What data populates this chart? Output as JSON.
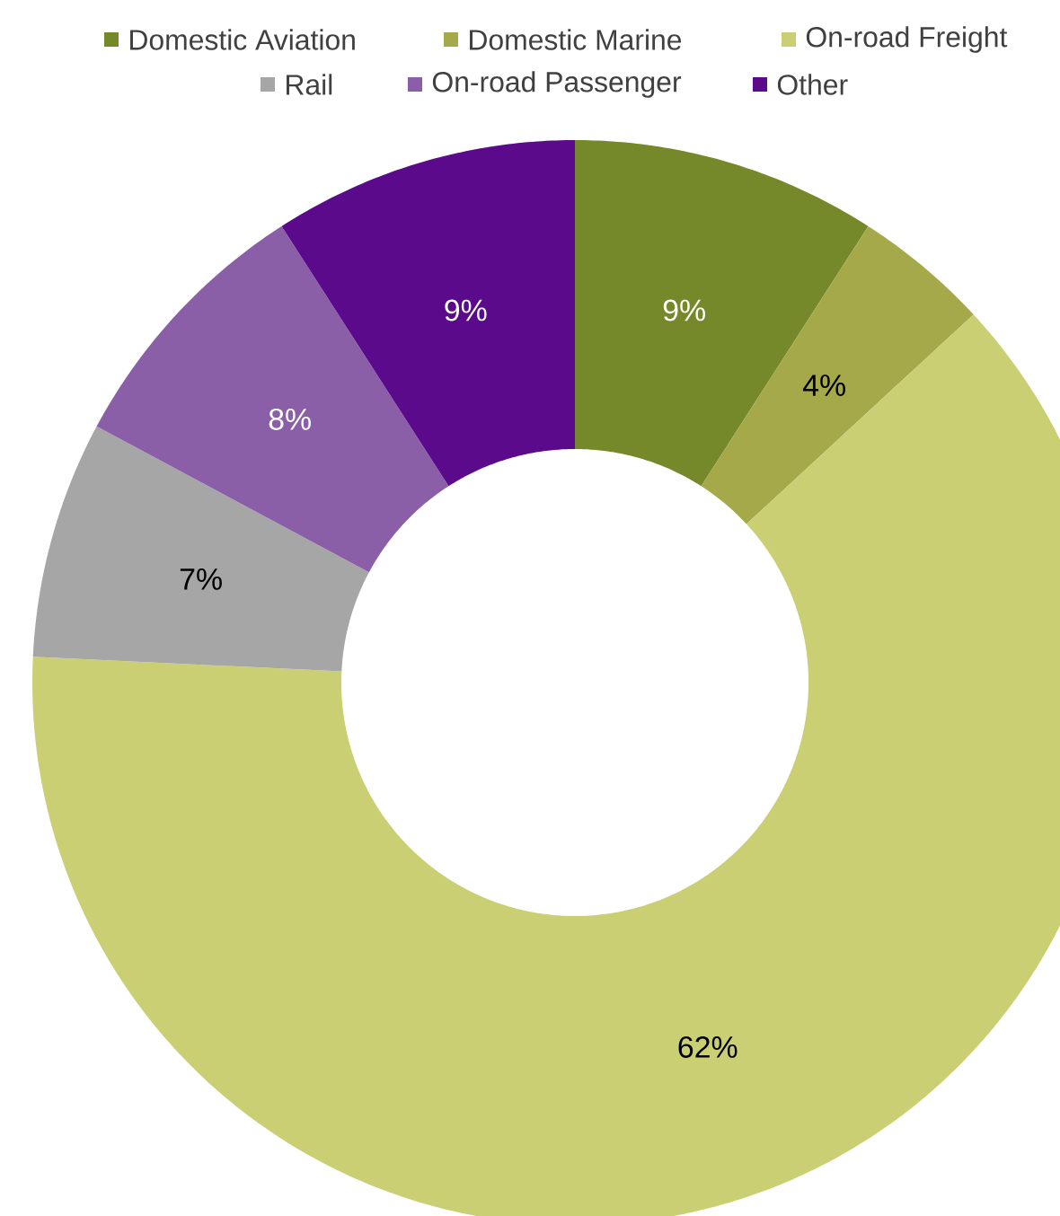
{
  "chart_data": {
    "type": "donut",
    "categories": [
      "Domestic Aviation",
      "Domestic Marine",
      "On-road Freight",
      "Rail",
      "On-road Passenger",
      "Other"
    ],
    "values": [
      9,
      4,
      62,
      7,
      8,
      9
    ],
    "value_labels": [
      "9%",
      "4%",
      "62%",
      "7%",
      "8%",
      "9%"
    ],
    "colors": [
      "#76892a",
      "#a5a94a",
      "#cbcf74",
      "#a6a6a6",
      "#8a5fa8",
      "#5c0a8c"
    ],
    "legend": "top"
  }
}
